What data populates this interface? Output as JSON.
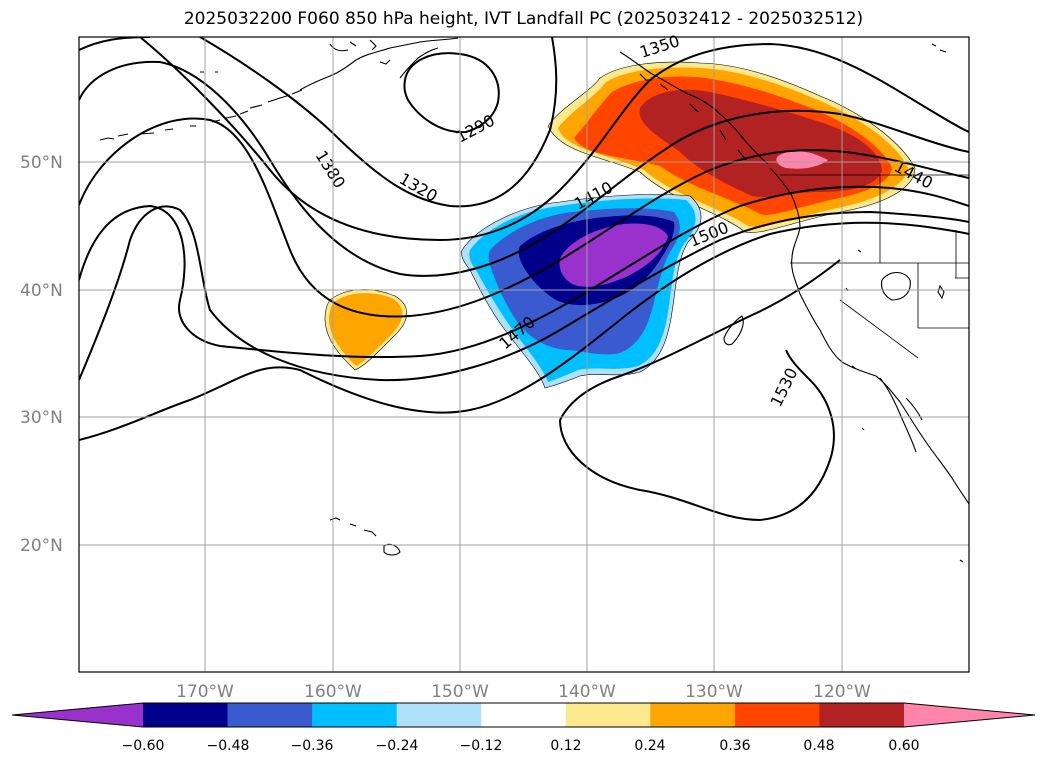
{
  "title": "2025032200 F060 850 hPa height, IVT Landfall PC (2025032412 - 2025032512)",
  "latitude_labels": [
    "50°N",
    "40°N",
    "30°N",
    "20°N"
  ],
  "longitude_labels": [
    "170°W",
    "160°W",
    "150°W",
    "140°W",
    "130°W",
    "120°W"
  ],
  "contour_labels": [
    "1290",
    "1320",
    "1350",
    "1380",
    "1410",
    "1440",
    "1470",
    "1500",
    "1530"
  ],
  "colorbar": {
    "tick_labels": [
      "−0.60",
      "−0.48",
      "−0.36",
      "−0.24",
      "−0.12",
      "0.12",
      "0.24",
      "0.36",
      "0.48",
      "0.60"
    ],
    "colors": [
      "#9932cc",
      "#00008b",
      "#3a5bcf",
      "#00bfff",
      "#aee0fa",
      "#ffffff",
      "#fce98e",
      "#ffa500",
      "#ff4500",
      "#b22222",
      "#ff85ad"
    ]
  }
}
